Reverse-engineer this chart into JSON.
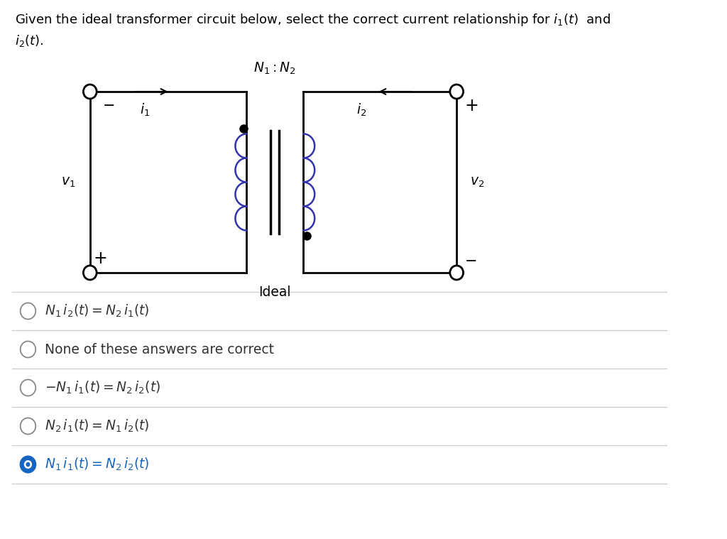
{
  "background_color": "#ffffff",
  "text_color": "#000000",
  "option_color": "#333333",
  "selected_color": "#1565c0",
  "coil_color": "#3333aa",
  "wire_color": "#000000",
  "options": [
    {
      "label": "$N_1\\, i_2(t) = N_2\\, i_1(t)$",
      "selected": false
    },
    {
      "label": "None of these answers are correct",
      "selected": false,
      "plain": true
    },
    {
      "label": "$-N_1\\, i_1(t) = N_2\\, i_2(t)$",
      "selected": false
    },
    {
      "label": "$N_2\\, i_1(t) = N_1\\, i_2(t)$",
      "selected": false
    },
    {
      "label": "$N_1\\, i_1(t) = N_2\\, i_2(t)$",
      "selected": true
    }
  ]
}
